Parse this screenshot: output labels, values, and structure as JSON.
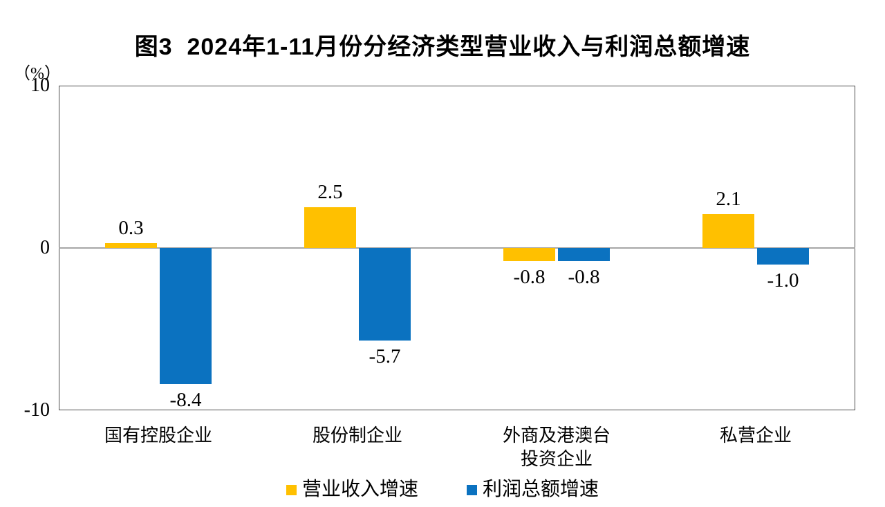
{
  "chart_data": {
    "type": "bar",
    "title": "图3  2024年1-11月份分经济类型营业收入与利润总额增速",
    "categories": [
      "国有控股企业",
      "股份制企业",
      "外商及港澳台投资企业",
      "私营企业"
    ],
    "category_lines": [
      [
        "国有控股企业"
      ],
      [
        "股份制企业"
      ],
      [
        "外商及港澳台",
        "投资企业"
      ],
      [
        "私营企业"
      ]
    ],
    "series": [
      {
        "key": "revenue",
        "name": "营业收入增速",
        "color": "#FFC000",
        "values": [
          0.3,
          2.5,
          -0.8,
          2.1
        ],
        "labels": [
          "0.3",
          "2.5",
          "-0.8",
          "2.1"
        ]
      },
      {
        "key": "profit",
        "name": "利润总额增速",
        "color": "#0B72C0",
        "values": [
          -8.4,
          -5.7,
          -0.8,
          -1.0
        ],
        "labels": [
          "-8.4",
          "-5.7",
          "-0.8",
          "-1.0"
        ]
      }
    ],
    "xlabel": "",
    "ylabel": "（%）",
    "ylim": [
      -10,
      10
    ],
    "yticks": [
      "10",
      "0",
      "-10"
    ],
    "grid": false,
    "legend_position": "bottom"
  },
  "y_axis": {
    "unit_label": "（%）",
    "ticks": [
      "10",
      "0",
      "-10"
    ]
  },
  "colors": {
    "revenue_bar": "#FFC000",
    "profit_bar": "#0B72C0",
    "zero_line": "#A6A6A6",
    "plot_border": "#4A4A4A",
    "text": "#000000"
  }
}
